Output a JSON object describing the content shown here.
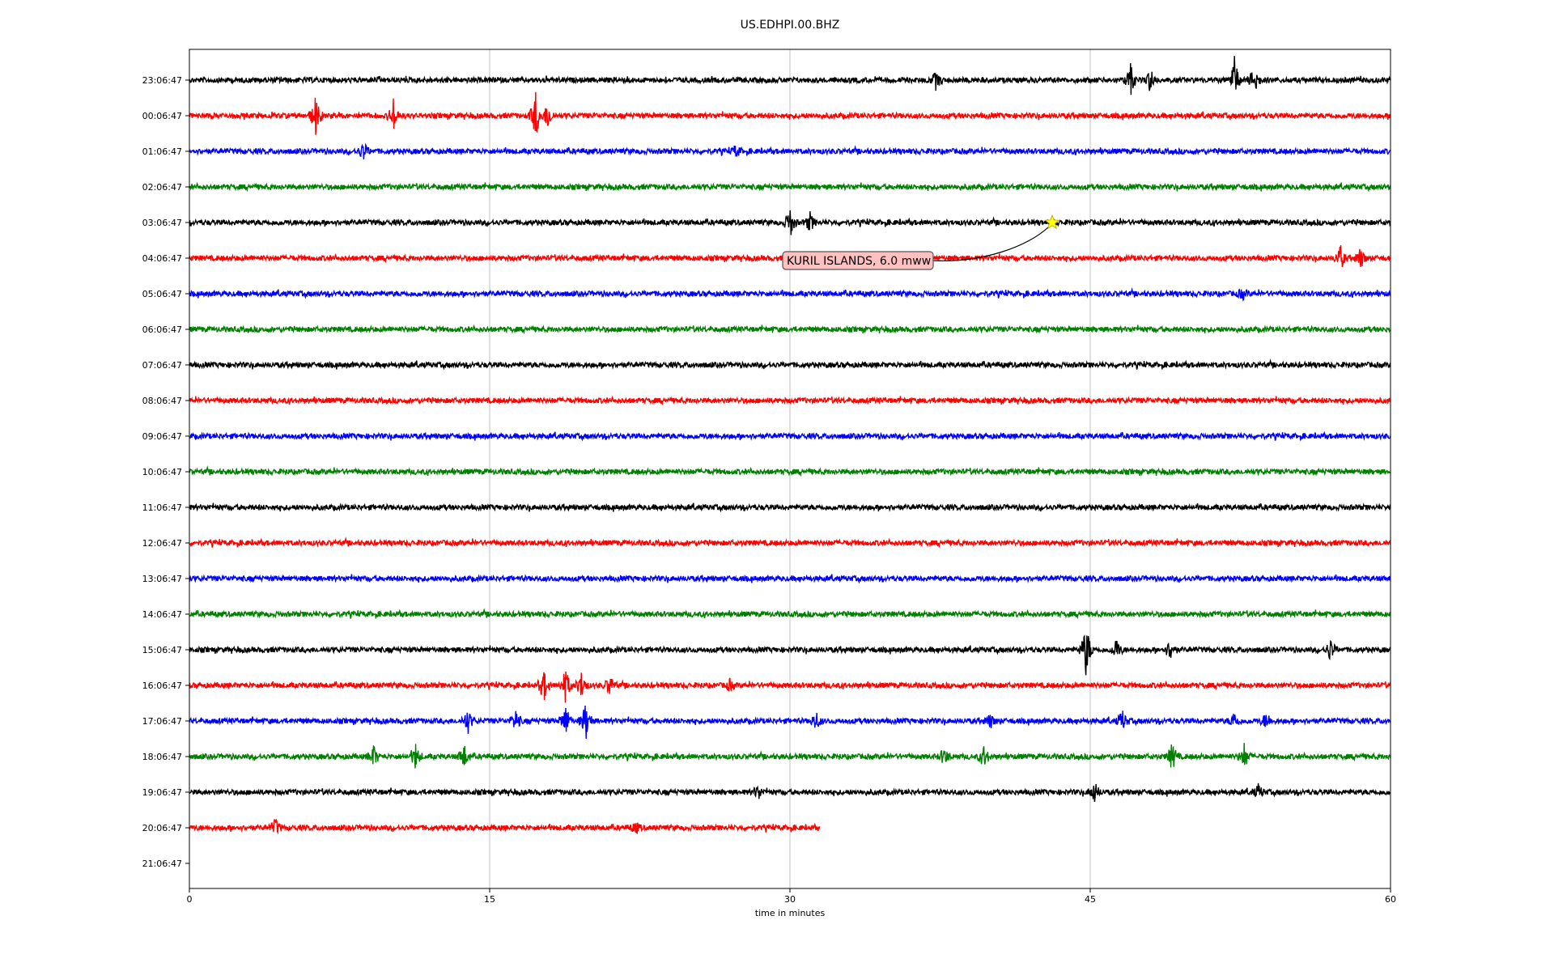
{
  "chart_data": {
    "type": "line",
    "title": "US.EDHPI.00.BHZ",
    "xlabel": "time in minutes",
    "ylabel": "",
    "xlim": [
      0,
      60
    ],
    "x_ticks": [
      "0",
      "15",
      "30",
      "45",
      "60"
    ],
    "grid": "vertical",
    "row_labels": [
      "23:06:47",
      "00:06:47",
      "01:06:47",
      "02:06:47",
      "03:06:47",
      "04:06:47",
      "05:06:47",
      "06:06:47",
      "07:06:47",
      "08:06:47",
      "09:06:47",
      "10:06:47",
      "11:06:47",
      "12:06:47",
      "13:06:47",
      "14:06:47",
      "15:06:47",
      "16:06:47",
      "17:06:47",
      "18:06:47",
      "19:06:47",
      "20:06:47",
      "21:06:47"
    ],
    "trace_colors": [
      "#000000",
      "#ff0000",
      "#0000ff",
      "#008000"
    ],
    "traces": [
      {
        "row": 0,
        "end_minute": 60,
        "events": [
          [
            47,
            0.9
          ],
          [
            48,
            0.7
          ],
          [
            52.2,
            1.3
          ],
          [
            53.2,
            0.9
          ],
          [
            37.3,
            0.5
          ]
        ]
      },
      {
        "row": 1,
        "end_minute": 60,
        "events": [
          [
            6.3,
            1.1
          ],
          [
            10.2,
            0.9
          ],
          [
            17.3,
            1.4
          ],
          [
            17.9,
            0.8
          ]
        ]
      },
      {
        "row": 2,
        "end_minute": 60,
        "events": [
          [
            8.7,
            0.5
          ],
          [
            27.3,
            0.3
          ]
        ]
      },
      {
        "row": 3,
        "end_minute": 60,
        "events": []
      },
      {
        "row": 4,
        "end_minute": 60,
        "events": [
          [
            30,
            0.9
          ],
          [
            31,
            0.5
          ]
        ]
      },
      {
        "row": 5,
        "end_minute": 60,
        "events": [
          [
            57.5,
            0.7
          ],
          [
            58.5,
            0.6
          ]
        ]
      },
      {
        "row": 6,
        "end_minute": 60,
        "events": [
          [
            52.6,
            0.3
          ]
        ]
      },
      {
        "row": 7,
        "end_minute": 60,
        "events": []
      },
      {
        "row": 8,
        "end_minute": 60,
        "events": []
      },
      {
        "row": 9,
        "end_minute": 60,
        "events": []
      },
      {
        "row": 10,
        "end_minute": 60,
        "events": []
      },
      {
        "row": 11,
        "end_minute": 60,
        "events": []
      },
      {
        "row": 12,
        "end_minute": 60,
        "events": []
      },
      {
        "row": 13,
        "end_minute": 60,
        "events": []
      },
      {
        "row": 14,
        "end_minute": 60,
        "events": []
      },
      {
        "row": 15,
        "end_minute": 60,
        "events": []
      },
      {
        "row": 16,
        "end_minute": 60,
        "events": [
          [
            44.8,
            1.6
          ],
          [
            46.3,
            0.6
          ],
          [
            49,
            0.6
          ],
          [
            57,
            0.6
          ]
        ]
      },
      {
        "row": 17,
        "end_minute": 60,
        "events": [
          [
            18.8,
            1.0
          ],
          [
            19.6,
            0.8
          ],
          [
            17.7,
            0.9
          ],
          [
            21,
            0.6
          ],
          [
            27,
            0.3
          ]
        ]
      },
      {
        "row": 18,
        "end_minute": 60,
        "events": [
          [
            13.9,
            0.7
          ],
          [
            16.3,
            0.6
          ],
          [
            18.8,
            0.9
          ],
          [
            19.8,
            1.1
          ],
          [
            31.3,
            0.5
          ],
          [
            40,
            0.4
          ],
          [
            46.6,
            0.6
          ],
          [
            52.2,
            0.5
          ],
          [
            53.8,
            0.5
          ]
        ]
      },
      {
        "row": 19,
        "end_minute": 60,
        "events": [
          [
            9.2,
            0.6
          ],
          [
            11.3,
            0.7
          ],
          [
            13.7,
            0.7
          ],
          [
            37.7,
            0.5
          ],
          [
            39.7,
            0.6
          ],
          [
            49.1,
            0.8
          ],
          [
            52.7,
            0.7
          ]
        ]
      },
      {
        "row": 20,
        "end_minute": 60,
        "events": [
          [
            28.4,
            0.4
          ],
          [
            45.2,
            0.6
          ],
          [
            53.4,
            0.4
          ]
        ]
      },
      {
        "row": 21,
        "end_minute": 31.5,
        "events": [
          [
            4.3,
            0.5
          ],
          [
            22.3,
            0.3
          ]
        ]
      }
    ],
    "annotation": {
      "text": "KURIL ISLANDS, 6.0 mww",
      "marker": "star",
      "marker_color": "#ffff00",
      "marker_row": 4,
      "marker_minute": 43.1
    }
  }
}
